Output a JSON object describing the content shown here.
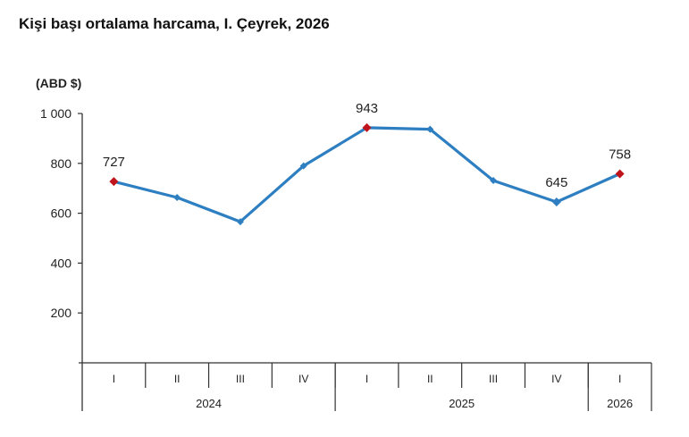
{
  "chart_data": {
    "type": "line",
    "title": "Kişi başı ortalama harcama, I. Çeyrek, 2026",
    "ylabel": "(ABD $)",
    "xlabel": "",
    "ylim": [
      0,
      1000
    ],
    "yticks": [
      200,
      400,
      600,
      800,
      1000
    ],
    "ytick_labels": [
      "200",
      "400",
      "600",
      "800",
      "1 000"
    ],
    "grid": false,
    "legend": null,
    "categories": [
      "I",
      "II",
      "III",
      "IV",
      "I",
      "II",
      "III",
      "IV",
      "I"
    ],
    "year_groups": [
      {
        "label": "2024",
        "span": 4
      },
      {
        "label": "2025",
        "span": 4
      },
      {
        "label": "2026",
        "span": 1
      }
    ],
    "series": [
      {
        "name": "Kişi başı ortalama harcama",
        "color": "#2e7fc1",
        "values": [
          727,
          663,
          566,
          790,
          943,
          937,
          731,
          645,
          758
        ]
      }
    ],
    "annotations": [
      {
        "index": 0,
        "text": "727",
        "marker_color": "#c0141c"
      },
      {
        "index": 4,
        "text": "943",
        "marker_color": "#c0141c"
      },
      {
        "index": 7,
        "text": "645",
        "marker_color": "#2e7fc1"
      },
      {
        "index": 8,
        "text": "758",
        "marker_color": "#c0141c"
      }
    ]
  },
  "header": {
    "title": "Kişi başı ortalama harcama, I. Çeyrek, 2026",
    "unit": "(ABD $)"
  }
}
